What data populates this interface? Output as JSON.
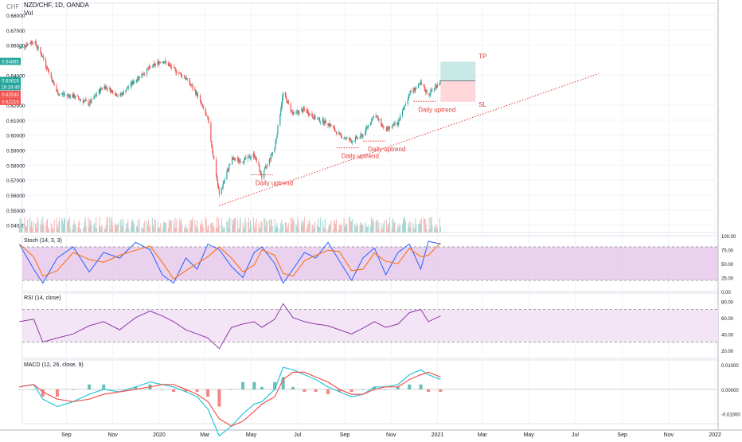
{
  "header": {
    "symbol_line": "NZD/CHF, 1D, OANDA",
    "volume_label": "Vol",
    "currency_label": "CHF"
  },
  "price_axis": {
    "ticks": [
      "0.68000",
      "0.67000",
      "0.66000",
      "0.64000",
      "0.62000",
      "0.61000",
      "0.60000",
      "0.59000",
      "0.58000",
      "0.57000",
      "0.56000",
      "0.55000",
      "0.54000"
    ],
    "tick_values": [
      0.68,
      0.67,
      0.66,
      0.64,
      0.62,
      0.61,
      0.6,
      0.59,
      0.58,
      0.57,
      0.56,
      0.55,
      0.54
    ],
    "badges": [
      {
        "text": "0.64885",
        "value": 0.6489,
        "color": "#26a69a"
      },
      {
        "text": "0.63616",
        "value": 0.6362,
        "color": "#26a69a"
      },
      {
        "text": "19:19:45",
        "value": 0.632,
        "color": "#26a69a"
      },
      {
        "text": "0.62530",
        "value": 0.627,
        "color": "#ef5350"
      },
      {
        "text": "0.62215",
        "value": 0.6222,
        "color": "#ef5350"
      }
    ]
  },
  "time_axis": [
    "Sep",
    "Nov",
    "2020",
    "Mar",
    "May",
    "Jul",
    "Sep",
    "Nov",
    "2021",
    "Mar",
    "May",
    "Jul",
    "Sep",
    "Nov",
    "2022"
  ],
  "annotations": {
    "daily_uptrend_labels": [
      "Daily uptrend",
      "Daily uptrend",
      "Daily uptrend",
      "Daily uptrend"
    ],
    "tp_label": "TP",
    "sl_label": "SL"
  },
  "panes": {
    "stoch": {
      "title": "Stoch (14, 3, 3)",
      "ticks": [
        "100.00",
        "75.00",
        "50.00",
        "25.00",
        "0.00"
      ]
    },
    "rsi": {
      "title": "RSI (14, close)",
      "ticks": [
        "80.00",
        "60.00",
        "40.00",
        "20.00"
      ]
    },
    "macd": {
      "title": "MACD (12, 26, close, 9)",
      "ticks": [
        "0.01000",
        "0.00000",
        "-0.01000"
      ]
    }
  },
  "colors": {
    "up": "#26a69a",
    "down": "#ef5350",
    "annotation": "#e53935",
    "stoch_band": "#e1bee7",
    "rsi_band": "#f3e5f5",
    "rsi_line": "#8e3aa7",
    "macd_line": "#26c6da",
    "signal_line": "#ef5350"
  },
  "chart_data": {
    "type": "candlestick",
    "symbol": "NZD/CHF",
    "timeframe": "1D",
    "source": "OANDA",
    "x_range": [
      "2019-07",
      "2022-01"
    ],
    "ylim": [
      0.535,
      0.688
    ],
    "price_path": [
      {
        "date": "2019-07-01",
        "close": 0.658
      },
      {
        "date": "2019-07-20",
        "close": 0.663
      },
      {
        "date": "2019-08-01",
        "close": 0.652
      },
      {
        "date": "2019-08-20",
        "close": 0.628
      },
      {
        "date": "2019-09-10",
        "close": 0.626
      },
      {
        "date": "2019-10-01",
        "close": 0.621
      },
      {
        "date": "2019-10-20",
        "close": 0.633
      },
      {
        "date": "2019-11-10",
        "close": 0.626
      },
      {
        "date": "2019-12-01",
        "close": 0.637
      },
      {
        "date": "2019-12-20",
        "close": 0.645
      },
      {
        "date": "2020-01-05",
        "close": 0.65
      },
      {
        "date": "2020-01-20",
        "close": 0.644
      },
      {
        "date": "2020-02-05",
        "close": 0.638
      },
      {
        "date": "2020-02-20",
        "close": 0.627
      },
      {
        "date": "2020-03-05",
        "close": 0.61
      },
      {
        "date": "2020-03-20",
        "close": 0.56
      },
      {
        "date": "2020-04-05",
        "close": 0.584
      },
      {
        "date": "2020-04-20",
        "close": 0.583
      },
      {
        "date": "2020-05-05",
        "close": 0.587
      },
      {
        "date": "2020-05-15",
        "close": 0.572
      },
      {
        "date": "2020-06-01",
        "close": 0.592
      },
      {
        "date": "2020-06-12",
        "close": 0.628
      },
      {
        "date": "2020-06-25",
        "close": 0.614
      },
      {
        "date": "2020-07-10",
        "close": 0.617
      },
      {
        "date": "2020-07-25",
        "close": 0.611
      },
      {
        "date": "2020-08-10",
        "close": 0.608
      },
      {
        "date": "2020-08-25",
        "close": 0.6
      },
      {
        "date": "2020-09-10",
        "close": 0.596
      },
      {
        "date": "2020-09-25",
        "close": 0.6
      },
      {
        "date": "2020-10-10",
        "close": 0.614
      },
      {
        "date": "2020-10-25",
        "close": 0.603
      },
      {
        "date": "2020-11-10",
        "close": 0.608
      },
      {
        "date": "2020-11-25",
        "close": 0.628
      },
      {
        "date": "2020-12-10",
        "close": 0.634
      },
      {
        "date": "2020-12-20",
        "close": 0.627
      },
      {
        "date": "2021-01-05",
        "close": 0.6362
      }
    ],
    "trendline": {
      "from": {
        "date": "2020-03-20",
        "value": 0.553
      },
      "to": {
        "date": "2021-08-01",
        "value": 0.641
      }
    },
    "position": {
      "entry": 0.6362,
      "take_profit": 0.6489,
      "stop_loss": 0.6222,
      "start": "2021-01-05",
      "end": "2021-02-20"
    },
    "support_levels": [
      {
        "date": "2020-05-15",
        "value": 0.5735,
        "label": "Daily uptrend"
      },
      {
        "date": "2020-09-05",
        "value": 0.5915,
        "label": "Daily uptrend"
      },
      {
        "date": "2020-10-10",
        "value": 0.596,
        "label": "Daily uptrend"
      },
      {
        "date": "2020-12-15",
        "value": 0.6225,
        "label": "Daily uptrend"
      }
    ],
    "indicators": {
      "stoch": {
        "params": "14, 3, 3",
        "overbought": 80,
        "oversold": 20,
        "k": [
          85,
          40,
          15,
          60,
          80,
          35,
          70,
          60,
          88,
          75,
          30,
          15,
          60,
          40,
          85,
          75,
          45,
          25,
          70,
          80,
          50,
          15,
          40,
          70,
          60,
          88,
          55,
          20,
          60,
          78,
          30,
          70,
          85,
          40,
          90,
          85
        ]
      },
      "rsi": {
        "params": "14, close",
        "upper": 70,
        "lower": 30,
        "values": [
          55,
          58,
          30,
          35,
          40,
          50,
          55,
          45,
          60,
          68,
          62,
          55,
          45,
          40,
          35,
          22,
          48,
          52,
          55,
          48,
          58,
          77,
          60,
          55,
          52,
          50,
          45,
          40,
          47,
          55,
          48,
          52,
          66,
          70,
          55,
          62
        ]
      },
      "macd": {
        "params": "12, 26, close, 9",
        "macd": [
          0.001,
          0.002,
          -0.004,
          -0.007,
          -0.005,
          -0.002,
          0.0,
          -0.001,
          0.001,
          0.003,
          0.002,
          0.001,
          -0.001,
          -0.003,
          -0.008,
          -0.019,
          -0.015,
          -0.01,
          -0.006,
          -0.005,
          0.0,
          0.009,
          0.008,
          0.006,
          0.004,
          0.001,
          -0.001,
          -0.003,
          -0.002,
          0.001,
          0.001,
          0.002,
          0.006,
          0.008,
          0.006,
          0.004
        ],
        "signal": [
          0.001,
          0.002,
          -0.001,
          -0.004,
          -0.005,
          -0.004,
          -0.002,
          -0.001,
          0.0,
          0.001,
          0.002,
          0.002,
          0.0,
          -0.002,
          -0.005,
          -0.012,
          -0.015,
          -0.013,
          -0.009,
          -0.006,
          -0.003,
          0.004,
          0.007,
          0.007,
          0.005,
          0.003,
          0.0,
          -0.002,
          -0.002,
          0.0,
          0.001,
          0.001,
          0.004,
          0.006,
          0.007,
          0.005
        ]
      }
    }
  }
}
